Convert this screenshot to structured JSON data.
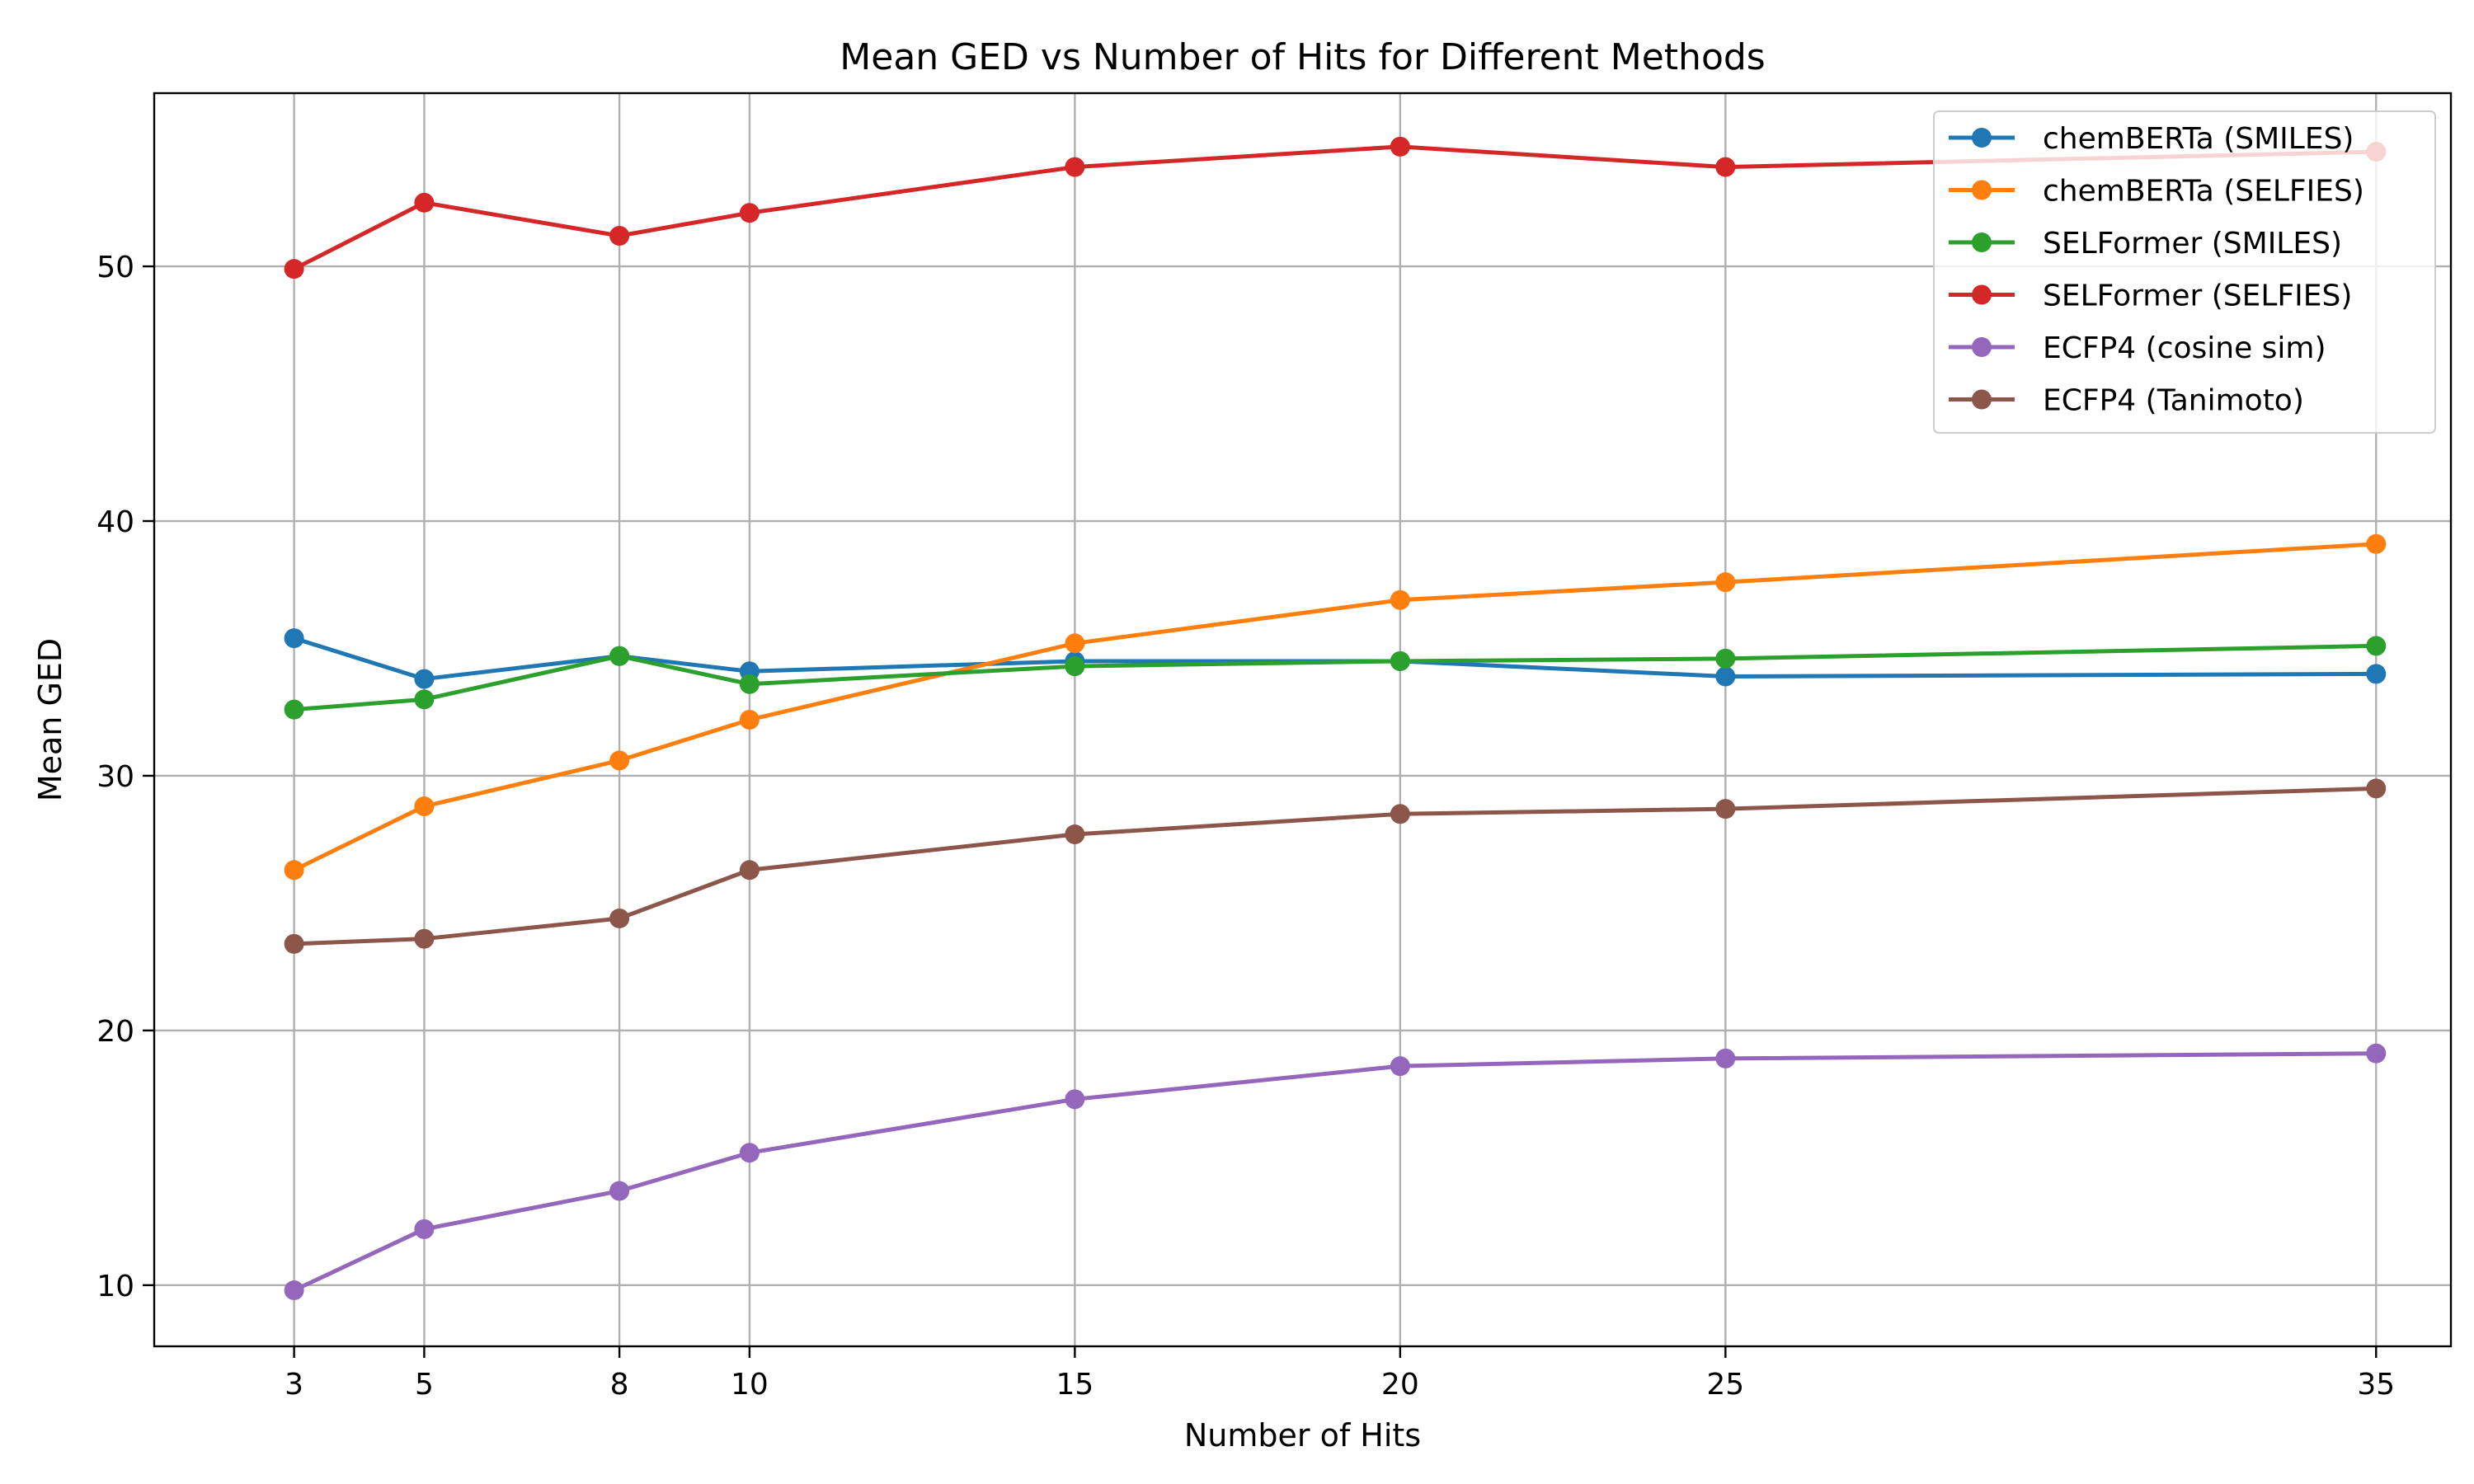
{
  "chart_data": {
    "type": "line",
    "title": "Mean GED vs Number of Hits for Different Methods",
    "xlabel": "Number of Hits",
    "ylabel": "Mean GED",
    "x": [
      3,
      5,
      8,
      10,
      15,
      20,
      25,
      35
    ],
    "xlim": [
      0.85,
      36.15
    ],
    "ylim": [
      7.6,
      56.8
    ],
    "xticks": [
      3,
      5,
      8,
      10,
      15,
      20,
      25,
      35
    ],
    "yticks": [
      10,
      20,
      30,
      40,
      50
    ],
    "grid": true,
    "legend_position": "top-right",
    "markers": "circle",
    "series": [
      {
        "name": "chemBERTa (SMILES)",
        "color": "#1f77b4",
        "values": [
          35.4,
          33.8,
          34.7,
          34.1,
          34.5,
          34.5,
          33.9,
          34.0
        ]
      },
      {
        "name": "chemBERTa (SELFIES)",
        "color": "#ff7f0e",
        "values": [
          26.3,
          28.8,
          30.6,
          32.2,
          35.2,
          36.9,
          37.6,
          39.1
        ]
      },
      {
        "name": "SELFormer (SMILES)",
        "color": "#2ca02c",
        "values": [
          32.6,
          33.0,
          34.7,
          33.6,
          34.3,
          34.5,
          34.6,
          35.1
        ]
      },
      {
        "name": "SELFormer (SELFIES)",
        "color": "#d62728",
        "values": [
          49.9,
          52.5,
          51.2,
          52.1,
          53.9,
          54.7,
          53.9,
          54.5
        ]
      },
      {
        "name": "ECFP4 (cosine sim)",
        "color": "#9467bd",
        "values": [
          9.8,
          12.2,
          13.7,
          15.2,
          17.3,
          18.6,
          18.9,
          19.1
        ]
      },
      {
        "name": "ECFP4 (Tanimoto)",
        "color": "#8c564b",
        "values": [
          23.4,
          23.6,
          24.4,
          26.3,
          27.7,
          28.5,
          28.7,
          29.5
        ]
      }
    ]
  }
}
